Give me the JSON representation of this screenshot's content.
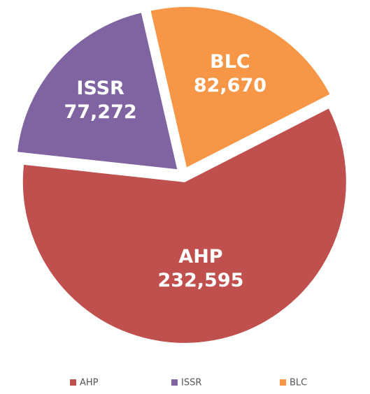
{
  "chart_data": {
    "type": "pie",
    "categories": [
      "AHP",
      "ISSR",
      "BLC"
    ],
    "values": [
      232595,
      77272,
      82670
    ],
    "value_labels": [
      "232,595",
      "77,272",
      "82,670"
    ],
    "colors": [
      "#c0504d",
      "#8064a2",
      "#f79646"
    ],
    "legend": "bottom"
  }
}
